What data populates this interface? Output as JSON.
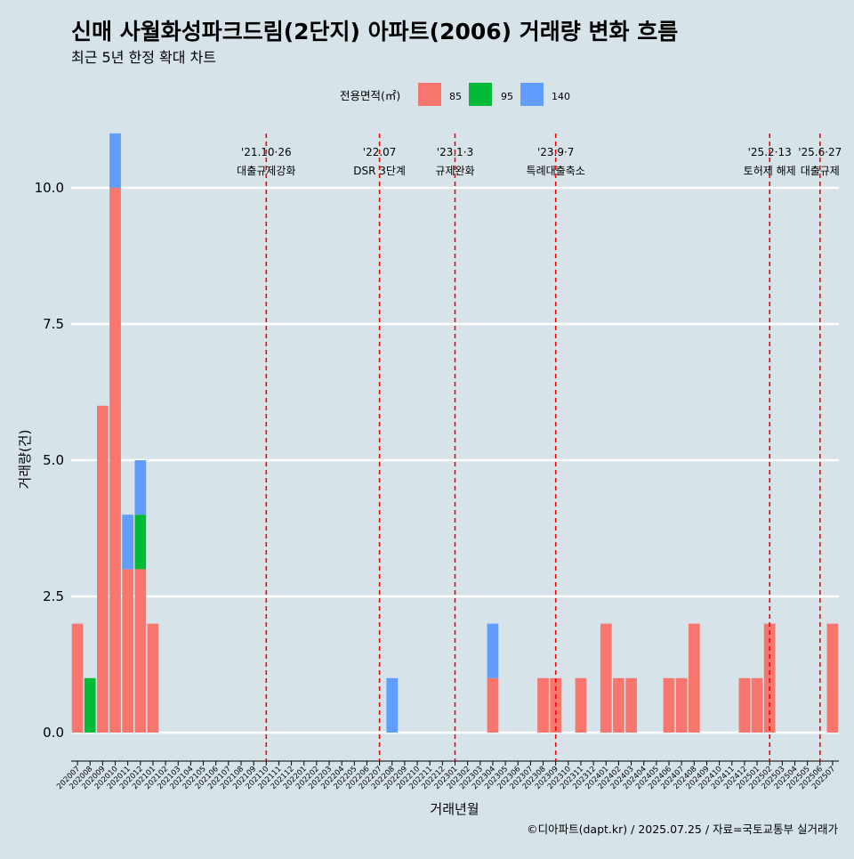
{
  "chart_data": {
    "type": "bar",
    "title": "신매 사월화성파크드림(2단지) 아파트(2006) 거래량 변화 흐름",
    "subtitle": "최근 5년 한정 확대 차트",
    "xlabel": "거래년월",
    "ylabel": "거래량(건)",
    "ylim": [
      0,
      10
    ],
    "yticks": [
      "0.0",
      "2.5",
      "5.0",
      "7.5",
      "10.0"
    ],
    "legend": {
      "title": "전용면적(㎡)",
      "position": "top",
      "items": [
        {
          "label": "85",
          "color": "#f8766d"
        },
        {
          "label": "95",
          "color": "#00ba38"
        },
        {
          "label": "140",
          "color": "#619cff"
        }
      ]
    },
    "grid": "horizontal",
    "categories": [
      "202007",
      "202008",
      "202009",
      "202010",
      "202011",
      "202012",
      "202101",
      "202102",
      "202103",
      "202104",
      "202105",
      "202106",
      "202107",
      "202108",
      "202109",
      "202110",
      "202111",
      "202112",
      "202201",
      "202202",
      "202203",
      "202204",
      "202205",
      "202206",
      "202207",
      "202208",
      "202209",
      "202210",
      "202211",
      "202212",
      "202301",
      "202302",
      "202303",
      "202304",
      "202305",
      "202306",
      "202307",
      "202308",
      "202309",
      "202310",
      "202311",
      "202312",
      "202401",
      "202402",
      "202403",
      "202404",
      "202405",
      "202406",
      "202407",
      "202408",
      "202409",
      "202410",
      "202411",
      "202412",
      "202501",
      "202502",
      "202503",
      "202504",
      "202505",
      "202506",
      "202507"
    ],
    "series": [
      {
        "name": "85",
        "color": "#f8766d",
        "points": [
          {
            "x": "202007",
            "y": 2
          },
          {
            "x": "202009",
            "y": 6
          },
          {
            "x": "202010",
            "y": 10
          },
          {
            "x": "202011",
            "y": 3
          },
          {
            "x": "202012",
            "y": 3
          },
          {
            "x": "202101",
            "y": 2
          },
          {
            "x": "202304",
            "y": 1
          },
          {
            "x": "202308",
            "y": 1
          },
          {
            "x": "202309",
            "y": 1
          },
          {
            "x": "202311",
            "y": 1
          },
          {
            "x": "202401",
            "y": 2
          },
          {
            "x": "202402",
            "y": 1
          },
          {
            "x": "202403",
            "y": 1
          },
          {
            "x": "202406",
            "y": 1
          },
          {
            "x": "202407",
            "y": 1
          },
          {
            "x": "202408",
            "y": 2
          },
          {
            "x": "202412",
            "y": 1
          },
          {
            "x": "202501",
            "y": 1
          },
          {
            "x": "202502",
            "y": 2
          },
          {
            "x": "202507",
            "y": 2
          }
        ]
      },
      {
        "name": "95",
        "color": "#00ba38",
        "points": [
          {
            "x": "202008",
            "y": 1
          },
          {
            "x": "202012",
            "y": 1
          }
        ]
      },
      {
        "name": "140",
        "color": "#619cff",
        "points": [
          {
            "x": "202010",
            "y": 1
          },
          {
            "x": "202011",
            "y": 1
          },
          {
            "x": "202012",
            "y": 1
          },
          {
            "x": "202208",
            "y": 1
          },
          {
            "x": "202304",
            "y": 1
          }
        ]
      }
    ],
    "annotations": [
      {
        "x": "202110",
        "date": "'21.10·26",
        "text": "대출규제강화",
        "style": "dashed",
        "color": "#ff0000"
      },
      {
        "x": "202207",
        "date": "'22.07",
        "text": "DSR 3단계",
        "style": "dashed",
        "color": "#ff0000"
      },
      {
        "x": "202301",
        "date": "'23.1·3",
        "text": "규제완화",
        "style": "dashed",
        "color": "#ff0000"
      },
      {
        "x": "202309",
        "date": "'23.9·7",
        "text": "특례대출축소",
        "style": "dashed",
        "color": "#ff0000"
      },
      {
        "x": "202502",
        "date": "'25.2·13",
        "text": "토허제 해제",
        "style": "dashed",
        "color": "#ff0000"
      },
      {
        "x": "202506",
        "date": "'25.6·27",
        "text": "대출규제",
        "style": "dashed",
        "color": "#ff0000"
      }
    ],
    "caption": "©디아파트(dapt.kr) / 2025.07.25 / 자료=국토교통부 실거래가"
  }
}
